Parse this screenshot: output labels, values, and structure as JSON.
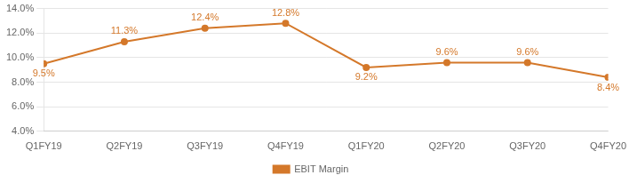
{
  "chart_data": {
    "type": "line",
    "categories": [
      "Q1FY19",
      "Q2FY19",
      "Q3FY19",
      "Q4FY19",
      "Q1FY20",
      "Q2FY20",
      "Q3FY20",
      "Q4FY20"
    ],
    "series": [
      {
        "name": "EBIT Margin",
        "color": "#D4782A",
        "marker": "circle",
        "values": [
          9.5,
          11.3,
          12.4,
          12.8,
          9.2,
          9.6,
          9.6,
          8.4
        ],
        "value_labels": [
          "9.5%",
          "11.3%",
          "12.4%",
          "12.8%",
          "9.2%",
          "9.6%",
          "9.6%",
          "8.4%"
        ]
      }
    ],
    "ylim": [
      4.0,
      14.0
    ],
    "yticks": [
      {
        "value": 4.0,
        "label": "4.0%"
      },
      {
        "value": 6.0,
        "label": "6.0%"
      },
      {
        "value": 8.0,
        "label": "8.0%"
      },
      {
        "value": 10.0,
        "label": "10.0%"
      },
      {
        "value": 12.0,
        "label": "12.0%"
      },
      {
        "value": 14.0,
        "label": "14.0%"
      }
    ],
    "grid": true,
    "legend": "bottom"
  }
}
